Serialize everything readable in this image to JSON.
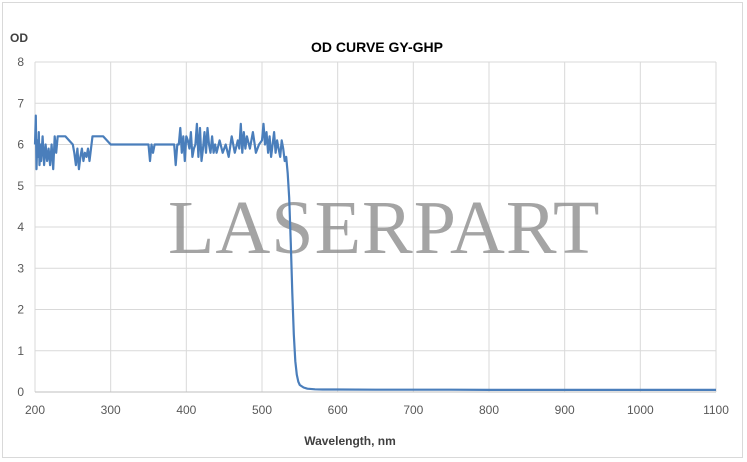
{
  "chart_data": {
    "type": "line",
    "title": "OD CURVE GY-GHP",
    "xlabel": "Wavelength, nm",
    "ylabel": "OD",
    "xlim": [
      200,
      1100
    ],
    "ylim": [
      0,
      8
    ],
    "x_ticks": [
      200,
      300,
      400,
      500,
      600,
      700,
      800,
      900,
      1000,
      1100
    ],
    "y_ticks": [
      0,
      1,
      2,
      3,
      4,
      5,
      6,
      7,
      8
    ],
    "grid": true,
    "legend": "none",
    "line_color": "#4a7ebb",
    "series": [
      {
        "x": [
          200,
          201,
          202,
          203,
          204,
          205,
          206,
          207,
          208,
          210,
          212,
          214,
          216,
          218,
          220,
          222,
          224,
          226,
          228,
          230,
          232,
          236,
          240,
          250,
          252,
          254,
          256,
          258,
          260,
          262,
          264,
          266,
          268,
          270,
          272,
          274,
          276,
          280,
          290,
          300,
          320,
          340,
          350,
          352,
          354,
          356,
          358,
          360,
          370,
          380,
          384,
          386,
          388,
          390,
          392,
          394,
          396,
          398,
          400,
          402,
          404,
          406,
          408,
          410,
          412,
          414,
          416,
          418,
          420,
          422,
          424,
          426,
          428,
          430,
          432,
          434,
          436,
          438,
          440,
          444,
          448,
          452,
          456,
          460,
          464,
          468,
          470,
          472,
          474,
          476,
          478,
          480,
          484,
          488,
          492,
          496,
          500,
          502,
          504,
          506,
          508,
          510,
          512,
          514,
          516,
          518,
          520,
          522,
          524,
          526,
          528,
          530,
          532,
          534,
          536,
          538,
          540,
          542,
          544,
          546,
          548,
          550,
          555,
          560,
          570,
          580,
          600,
          650,
          700,
          750,
          800,
          850,
          900,
          950,
          1000,
          1050,
          1100
        ],
        "values": [
          6.0,
          6.7,
          5.4,
          6.1,
          5.7,
          6.3,
          5.5,
          6.0,
          5.6,
          6.2,
          5.5,
          6.0,
          5.6,
          5.9,
          5.5,
          6.0,
          5.4,
          6.2,
          5.8,
          6.2,
          6.2,
          6.2,
          6.2,
          6.0,
          5.8,
          5.5,
          5.9,
          5.4,
          5.7,
          5.9,
          5.6,
          5.8,
          5.7,
          5.9,
          5.6,
          5.9,
          6.2,
          6.2,
          6.2,
          6.0,
          6.0,
          6.0,
          6.0,
          5.6,
          6.0,
          5.8,
          6.0,
          6.0,
          6.0,
          6.0,
          6.0,
          5.5,
          6.0,
          6.0,
          6.4,
          5.8,
          6.2,
          5.6,
          6.2,
          6.1,
          5.9,
          6.3,
          5.7,
          5.9,
          6.0,
          6.5,
          5.7,
          6.4,
          5.6,
          5.9,
          6.3,
          5.8,
          6.4,
          6.0,
          5.8,
          6.2,
          5.8,
          6.0,
          5.8,
          6.1,
          5.8,
          6.0,
          5.7,
          6.2,
          5.8,
          6.1,
          5.9,
          6.5,
          5.8,
          6.3,
          5.9,
          6.2,
          5.9,
          6.3,
          5.8,
          6.0,
          6.1,
          6.5,
          6.0,
          6.3,
          5.8,
          6.2,
          5.7,
          6.0,
          6.3,
          5.8,
          6.1,
          5.9,
          5.7,
          6.1,
          5.9,
          5.6,
          5.7,
          5.3,
          4.7,
          3.6,
          2.4,
          1.4,
          0.75,
          0.42,
          0.25,
          0.17,
          0.11,
          0.08,
          0.065,
          0.06,
          0.06,
          0.055,
          0.055,
          0.055,
          0.05,
          0.05,
          0.05,
          0.05,
          0.05,
          0.05,
          0.05
        ]
      }
    ]
  },
  "watermark": "LASERPART"
}
